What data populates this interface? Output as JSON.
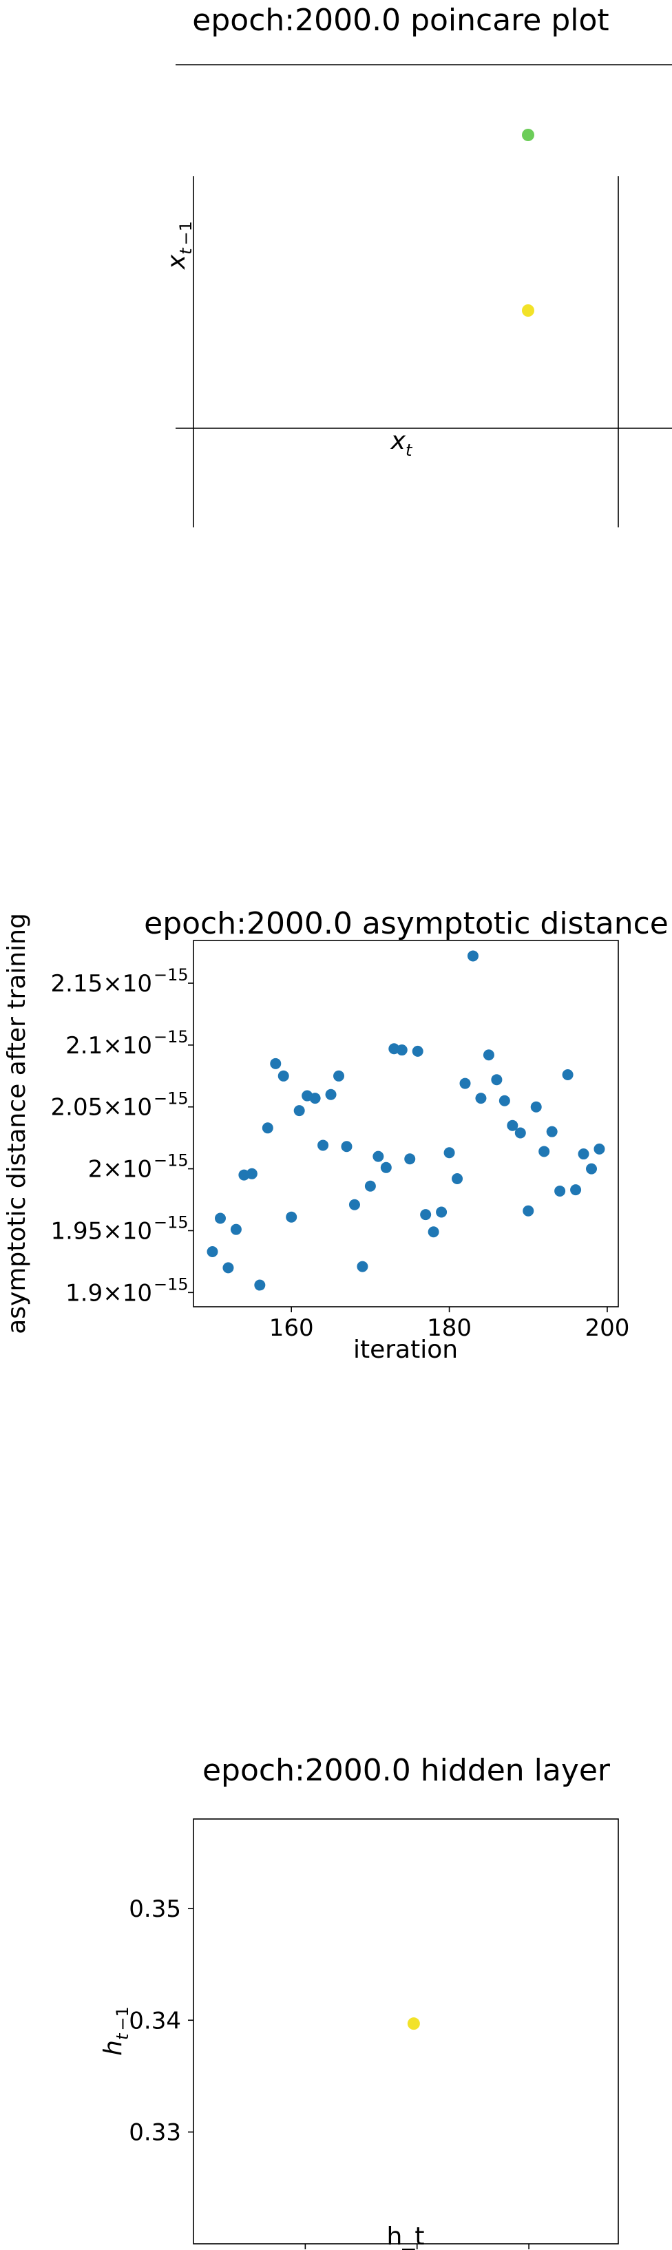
{
  "chart_data": [
    {
      "type": "scatter",
      "title": "epoch:2000.0 poincare plot",
      "xlabel": "x_t",
      "ylabel": "x_{t-1}",
      "grid": false,
      "points": [
        {
          "color": "#6ccd59"
        },
        {
          "color": "#f2e228"
        }
      ]
    },
    {
      "type": "scatter",
      "title": "epoch:2000.0 asymptotic distance",
      "xlabel": "iteration",
      "ylabel": "asymptotic distance after training",
      "grid": false,
      "color": "#1f77b4",
      "xlim": [
        147.6,
        201.4
      ],
      "ylim": [
        1.8885,
        2.1845
      ],
      "xticks": [
        160,
        180,
        200
      ],
      "yticks": [
        1.9,
        1.95,
        2.0,
        2.05,
        2.1,
        2.15
      ],
      "ytick_labels": [
        "1.9",
        "1.95",
        "2",
        "2.05",
        "2.1",
        "2.15"
      ],
      "ytick_suffix": "×10",
      "ytick_exponent": "−15",
      "x": [
        150,
        151,
        152,
        153,
        154,
        155,
        156,
        157,
        158,
        159,
        160,
        161,
        162,
        163,
        164,
        165,
        166,
        167,
        168,
        169,
        170,
        171,
        172,
        173,
        174,
        175,
        176,
        177,
        178,
        179,
        180,
        181,
        182,
        183,
        184,
        185,
        186,
        187,
        188,
        189,
        190,
        191,
        192,
        193,
        194,
        195,
        196,
        197,
        198,
        199
      ],
      "y": [
        1.933,
        1.96,
        1.92,
        1.951,
        1.995,
        1.996,
        1.906,
        2.033,
        2.085,
        2.075,
        1.961,
        2.047,
        2.059,
        2.057,
        2.019,
        2.06,
        2.075,
        2.018,
        1.971,
        1.921,
        1.986,
        2.01,
        2.001,
        2.097,
        2.096,
        2.008,
        2.095,
        1.963,
        1.949,
        1.965,
        2.013,
        1.992,
        2.069,
        2.172,
        2.057,
        2.092,
        2.072,
        2.055,
        2.035,
        2.029,
        1.966,
        2.05,
        2.014,
        2.03,
        1.982,
        2.076,
        1.983,
        2.012,
        2.0,
        2.016
      ]
    },
    {
      "type": "scatter",
      "title": "epoch:2000.0 hidden layer",
      "xlabel": "h_t",
      "ylabel": "h_{t-1}",
      "grid": false,
      "xlim": [
        0.32,
        0.358
      ],
      "ylim": [
        0.32,
        0.358
      ],
      "xticks": [
        0.33,
        0.34,
        0.35
      ],
      "yticks": [
        0.33,
        0.34,
        0.35
      ],
      "tick_labels": [
        "0.33",
        "0.34",
        "0.35"
      ],
      "points": [
        {
          "x": 0.3397,
          "y": 0.3397,
          "color": "#f2e228"
        }
      ]
    }
  ]
}
